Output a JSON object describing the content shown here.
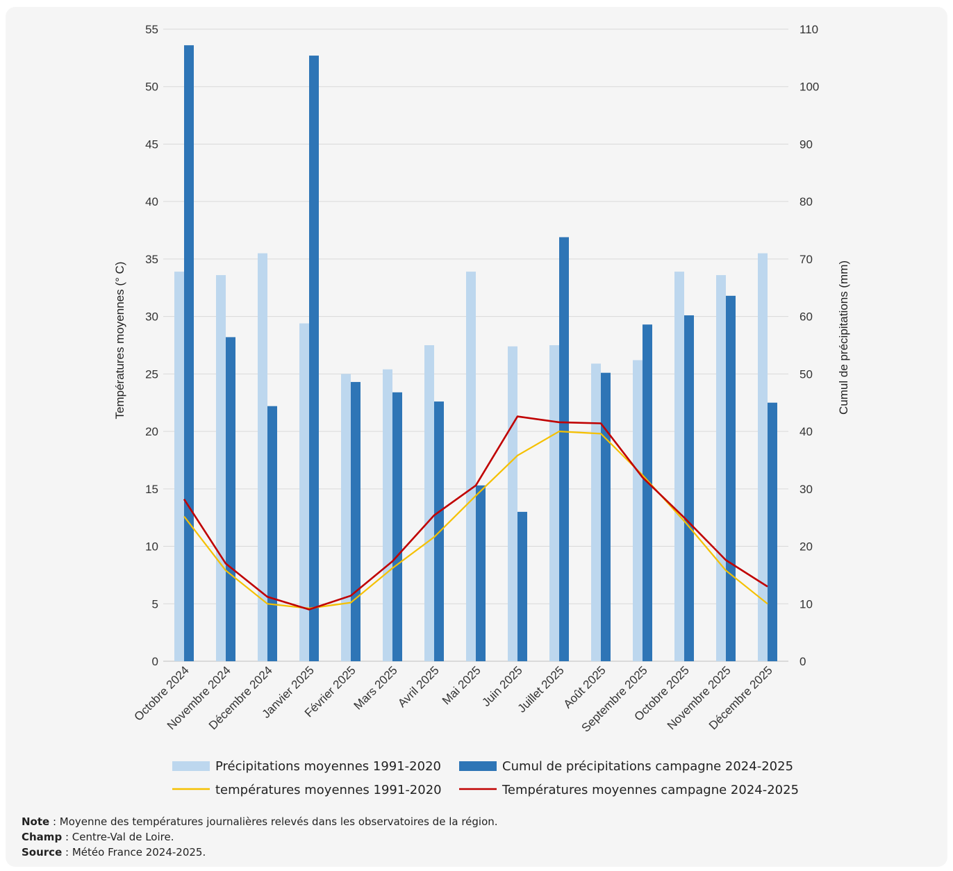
{
  "chart_data": {
    "type": "bar",
    "categories": [
      "Octobre 2024",
      "Novembre 2024",
      "Décembre 2024",
      "Janvier 2025",
      "Février 2025",
      "Mars 2025",
      "Avril 2025",
      "Mai 2025",
      "Juin 2025",
      "Juillet 2025",
      "Août 2025",
      "Septembre 2025",
      "Octobre 2025",
      "Novembre 2025",
      "Décembre 2025"
    ],
    "ylabel": "Températures moyennes (° C)",
    "ylim": [
      0,
      55
    ],
    "yticks": [
      "0",
      "5",
      "10",
      "15",
      "20",
      "25",
      "30",
      "35",
      "40",
      "45",
      "50",
      "55"
    ],
    "y2label": "Cumul de précipitations (mm)",
    "y2lim": [
      0,
      110
    ],
    "y2ticks": [
      "0",
      "10",
      "20",
      "30",
      "40",
      "50",
      "60",
      "70",
      "80",
      "90",
      "100",
      "110"
    ],
    "grid": true,
    "legend_position": "bottom",
    "bar_series": [
      {
        "name": "Précipitations moyennes 1991-2020",
        "axis": "right",
        "color": "#bdd7ee",
        "values": [
          67.8,
          67.2,
          71.0,
          58.8,
          50.0,
          50.8,
          55.0,
          67.8,
          54.8,
          55.0,
          51.8,
          52.4,
          67.8,
          67.2,
          71.0
        ]
      },
      {
        "name": "Cumul de précipitations campagne 2024-2025",
        "axis": "right",
        "color": "#2e75b6",
        "values": [
          107.2,
          56.4,
          44.4,
          105.4,
          48.6,
          46.8,
          45.2,
          30.6,
          26.0,
          73.8,
          50.2,
          58.6,
          60.2,
          63.6,
          45.0
        ]
      }
    ],
    "line_series": [
      {
        "name": "températures moyennes 1991-2020",
        "axis": "left",
        "color": "#f5c000",
        "values": [
          12.6,
          7.9,
          5.0,
          4.6,
          5.1,
          8.1,
          10.8,
          14.4,
          17.9,
          20.0,
          19.8,
          16.2,
          12.2,
          7.9,
          5.0
        ]
      },
      {
        "name": "Températures moyennes campagne 2024-2025",
        "axis": "left",
        "color": "#c00000",
        "values": [
          14.1,
          8.5,
          5.6,
          4.5,
          5.7,
          8.7,
          12.7,
          15.3,
          21.3,
          20.8,
          20.7,
          16.0,
          12.5,
          8.8,
          6.5
        ]
      }
    ]
  },
  "notes": {
    "note_label": "Note",
    "note_text": " : Moyenne des températures journalières relevés dans les observatoires de la région.",
    "champ_label": "Champ",
    "champ_text": " : Centre-Val de Loire.",
    "source_label": "Source",
    "source_text": " : Météo France 2024-2025."
  }
}
